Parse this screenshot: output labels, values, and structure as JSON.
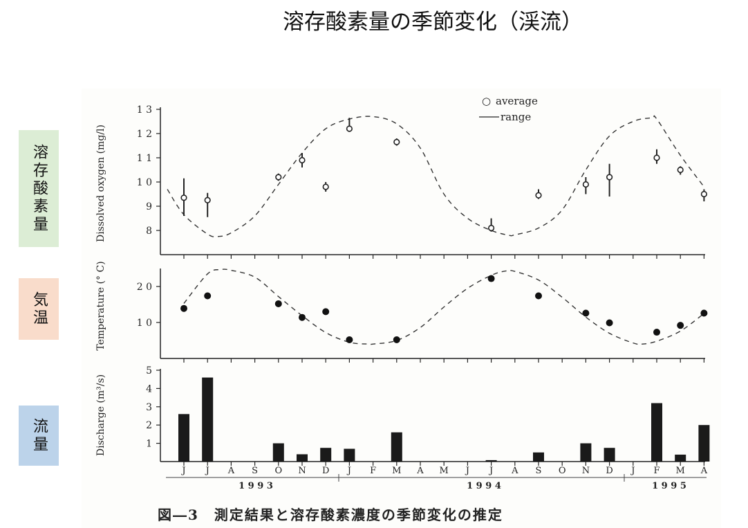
{
  "page": {
    "title": "溶存酸素量の季節変化（渓流）",
    "side_labels": [
      {
        "text": "溶存酸素量",
        "color": "#dcedd5"
      },
      {
        "text": "気温",
        "color": "#f9dccb"
      },
      {
        "text": "流量",
        "color": "#bcd3ea"
      }
    ],
    "caption": "図―3　測定結果と溶存酸素濃度の季節変化の推定"
  },
  "chart_data": [
    {
      "type": "scatter",
      "ylabel": "Dissolved oxygen (mg/l)",
      "ylim": [
        7,
        13
      ],
      "yticks": [
        8,
        9,
        10,
        11,
        12,
        13
      ],
      "ytick_labels": [
        "8",
        "9",
        "1 0",
        "1 1",
        "1 2",
        "1 3"
      ],
      "legend": {
        "placement": "top-right",
        "entries": [
          "average",
          "range"
        ]
      },
      "categories": [
        "J",
        "J",
        "A",
        "S",
        "O",
        "N",
        "D",
        "J",
        "F",
        "M",
        "A",
        "M",
        "J",
        "J",
        "A",
        "S",
        "O",
        "N",
        "D",
        "J",
        "F",
        "M",
        "A"
      ],
      "points": [
        {
          "month": 0,
          "avg": 9.35,
          "low": 8.6,
          "high": 10.15
        },
        {
          "month": 1,
          "avg": 9.25,
          "low": 8.55,
          "high": 9.55
        },
        {
          "month": 4,
          "avg": 10.2,
          "low": 10.05,
          "high": 10.35
        },
        {
          "month": 5,
          "avg": 10.9,
          "low": 10.6,
          "high": 11.2
        },
        {
          "month": 6,
          "avg": 9.8,
          "low": 9.6,
          "high": 10.0
        },
        {
          "month": 7,
          "avg": 12.2,
          "low": 12.15,
          "high": 12.65
        },
        {
          "month": 9,
          "avg": 11.65,
          "low": 11.5,
          "high": 11.8
        },
        {
          "month": 13,
          "avg": 8.1,
          "low": 7.95,
          "high": 8.5
        },
        {
          "month": 15,
          "avg": 9.45,
          "low": 9.3,
          "high": 9.7
        },
        {
          "month": 17,
          "avg": 9.9,
          "low": 9.5,
          "high": 10.2
        },
        {
          "month": 18,
          "avg": 10.2,
          "low": 9.4,
          "high": 10.75
        },
        {
          "month": 20,
          "avg": 11.0,
          "low": 10.75,
          "high": 11.35
        },
        {
          "month": 21,
          "avg": 10.5,
          "low": 10.3,
          "high": 10.65
        },
        {
          "month": 22,
          "avg": 9.5,
          "low": 9.2,
          "high": 9.7
        }
      ],
      "estimated_curve": [
        [
          -0.7,
          9.7
        ],
        [
          0,
          8.65
        ],
        [
          1,
          7.85
        ],
        [
          1.45,
          7.75
        ],
        [
          2,
          7.9
        ],
        [
          3,
          8.6
        ],
        [
          4,
          9.9
        ],
        [
          5,
          11.2
        ],
        [
          6,
          12.2
        ],
        [
          7,
          12.6
        ],
        [
          8,
          12.7
        ],
        [
          9,
          12.4
        ],
        [
          10,
          11.4
        ],
        [
          11,
          9.5
        ],
        [
          12,
          8.5
        ],
        [
          13,
          8.0
        ],
        [
          13.75,
          7.8
        ],
        [
          14,
          7.82
        ],
        [
          15,
          8.1
        ],
        [
          16,
          8.85
        ],
        [
          17,
          10.5
        ],
        [
          18,
          11.9
        ],
        [
          19,
          12.5
        ],
        [
          19.8,
          12.65
        ],
        [
          20,
          12.6
        ],
        [
          21,
          11.1
        ],
        [
          22,
          9.8
        ]
      ]
    },
    {
      "type": "scatter",
      "ylabel": "Temperature (° C)",
      "ylim": [
        0,
        25
      ],
      "yticks": [
        10,
        20
      ],
      "ytick_labels": [
        "1 0",
        "2 0"
      ],
      "points": [
        [
          0,
          13.9
        ],
        [
          1,
          17.4
        ],
        [
          4,
          15.2
        ],
        [
          5,
          11.4
        ],
        [
          6,
          13.0
        ],
        [
          7,
          5.2
        ],
        [
          9,
          5.2
        ],
        [
          13,
          22.2
        ],
        [
          15,
          17.4
        ],
        [
          17,
          12.6
        ],
        [
          18,
          9.9
        ],
        [
          20,
          7.3
        ],
        [
          21,
          9.2
        ],
        [
          22,
          12.6
        ]
      ],
      "estimated_curve": [
        [
          0,
          15.3
        ],
        [
          1,
          23.5
        ],
        [
          1.55,
          24.7
        ],
        [
          2,
          24.5
        ],
        [
          3,
          22.6
        ],
        [
          4,
          17.2
        ],
        [
          5,
          11.9
        ],
        [
          6,
          7.2
        ],
        [
          7,
          4.5
        ],
        [
          7.8,
          4.0
        ],
        [
          8,
          4.0
        ],
        [
          9,
          5.0
        ],
        [
          10,
          8.6
        ],
        [
          11,
          14.3
        ],
        [
          12,
          19.5
        ],
        [
          13,
          23.1
        ],
        [
          13.6,
          24.3
        ],
        [
          14,
          24.2
        ],
        [
          15,
          21.8
        ],
        [
          16,
          17.0
        ],
        [
          17,
          11.5
        ],
        [
          18,
          7.0
        ],
        [
          19,
          4.3
        ],
        [
          19.4,
          4.0
        ],
        [
          20,
          4.8
        ],
        [
          21,
          7.6
        ],
        [
          22,
          12.5
        ]
      ]
    },
    {
      "type": "bar",
      "ylabel": "Discharge (m³/s)",
      "ylim": [
        0,
        5
      ],
      "yticks": [
        1,
        2,
        3,
        4,
        5
      ],
      "ytick_labels": [
        "1",
        "2",
        "3",
        "4",
        "5"
      ],
      "bars": [
        [
          0,
          2.6
        ],
        [
          1,
          4.6
        ],
        [
          4,
          1.0
        ],
        [
          5,
          0.4
        ],
        [
          6,
          0.75
        ],
        [
          7,
          0.7
        ],
        [
          9,
          1.6
        ],
        [
          13,
          0.08
        ],
        [
          15,
          0.5
        ],
        [
          17,
          1.0
        ],
        [
          18,
          0.75
        ],
        [
          20,
          3.2
        ],
        [
          21,
          0.38
        ],
        [
          22,
          2.0
        ]
      ],
      "categories": [
        "J",
        "J",
        "A",
        "S",
        "O",
        "N",
        "D",
        "J",
        "F",
        "M",
        "A",
        "M",
        "J",
        "J",
        "A",
        "S",
        "O",
        "N",
        "D",
        "J",
        "F",
        "M",
        "A"
      ],
      "years": [
        "1 9 9 3",
        "1 9 9 4",
        "1 9 9 5"
      ]
    }
  ]
}
